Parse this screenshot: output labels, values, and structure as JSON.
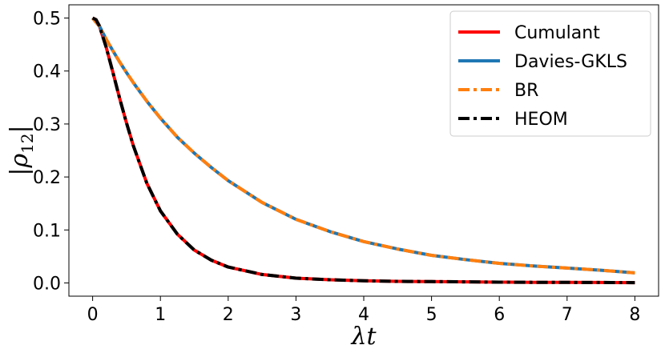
{
  "chart_data": {
    "type": "line",
    "title": "",
    "xlabel": "λt",
    "ylabel": "|ρ12|",
    "ylabel_main": "ρ",
    "ylabel_sub": "12",
    "xlim": [
      -0.35,
      8.35
    ],
    "ylim": [
      -0.025,
      0.525
    ],
    "xticks": [
      0,
      1,
      2,
      3,
      4,
      5,
      6,
      7,
      8
    ],
    "yticks": [
      0.0,
      0.1,
      0.2,
      0.3,
      0.4,
      0.5
    ],
    "ytick_labels": [
      "0.0",
      "0.1",
      "0.2",
      "0.3",
      "0.4",
      "0.5"
    ],
    "grid": false,
    "legend_position": "top-right",
    "x": [
      0,
      0.05,
      0.1,
      0.2,
      0.3,
      0.4,
      0.5,
      0.6,
      0.8,
      1.0,
      1.25,
      1.5,
      1.75,
      2.0,
      2.5,
      3.0,
      3.5,
      4.0,
      4.5,
      5.0,
      5.5,
      6.0,
      6.5,
      7.0,
      7.5,
      8.0
    ],
    "series": [
      {
        "name": "Cumulant",
        "color": "#ff0000",
        "style": "solid",
        "values": [
          0.5,
          0.497,
          0.485,
          0.445,
          0.397,
          0.348,
          0.302,
          0.259,
          0.188,
          0.136,
          0.092,
          0.062,
          0.043,
          0.03,
          0.016,
          0.009,
          0.006,
          0.004,
          0.003,
          0.0025,
          0.002,
          0.0015,
          0.0012,
          0.001,
          0.0008,
          0.0006
        ]
      },
      {
        "name": "Davies-GKLS",
        "color": "#1f77b4",
        "style": "solid",
        "values": [
          0.5,
          0.492,
          0.485,
          0.46,
          0.438,
          0.417,
          0.397,
          0.378,
          0.343,
          0.311,
          0.275,
          0.245,
          0.218,
          0.193,
          0.152,
          0.12,
          0.097,
          0.078,
          0.064,
          0.052,
          0.044,
          0.037,
          0.032,
          0.028,
          0.024,
          0.019
        ]
      },
      {
        "name": "BR",
        "color": "#ff7f0e",
        "style": "dashdot",
        "values": [
          0.5,
          0.492,
          0.485,
          0.46,
          0.438,
          0.417,
          0.397,
          0.378,
          0.343,
          0.311,
          0.275,
          0.245,
          0.218,
          0.193,
          0.152,
          0.12,
          0.097,
          0.078,
          0.064,
          0.052,
          0.044,
          0.037,
          0.032,
          0.028,
          0.024,
          0.019
        ]
      },
      {
        "name": "HEOM",
        "color": "#000000",
        "style": "dashdot",
        "values": [
          0.5,
          0.497,
          0.485,
          0.445,
          0.397,
          0.348,
          0.302,
          0.259,
          0.188,
          0.136,
          0.092,
          0.062,
          0.043,
          0.03,
          0.016,
          0.009,
          0.006,
          0.004,
          0.003,
          0.0025,
          0.002,
          0.0015,
          0.0012,
          0.001,
          0.0008,
          0.0006
        ]
      }
    ]
  }
}
